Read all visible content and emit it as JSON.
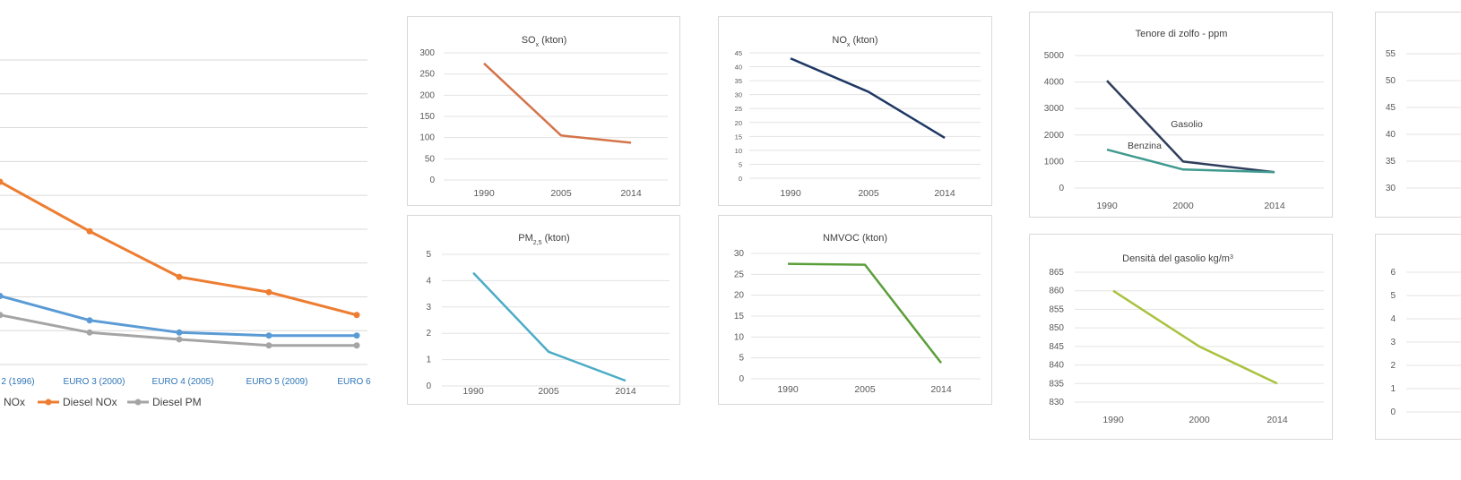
{
  "chart_data": [
    {
      "id": "euro",
      "type": "line",
      "title": "",
      "categories": [
        "2 (1996)",
        "EURO 3 (2000)",
        "EURO 4 (2005)",
        "EURO 5 (2009)",
        "EURO 6"
      ],
      "series": [
        {
          "name": "NOx",
          "color": "#5b9bd5",
          "values": [
            0.9,
            0.58,
            0.42,
            0.38,
            0.38
          ]
        },
        {
          "name": "Diesel NOx",
          "color": "#ed7d31",
          "values": [
            2.4,
            1.75,
            1.15,
            0.95,
            0.65
          ]
        },
        {
          "name": "Diesel PM",
          "color": "#a5a5a5",
          "values": [
            0.65,
            0.42,
            0.33,
            0.25,
            0.25
          ]
        }
      ],
      "ylim": [
        0,
        4.0
      ],
      "grid": true,
      "legend": "bottom"
    },
    {
      "id": "sox",
      "type": "line",
      "title": "SO",
      "title_sub": "x",
      "title_suffix": " (kton)",
      "categories": [
        "1990",
        "2005",
        "2014"
      ],
      "series": [
        {
          "color": "#d4744a",
          "values": [
            275,
            105,
            88
          ]
        }
      ],
      "yticks": [
        "300",
        "250",
        "200",
        "150",
        "100",
        "50",
        "0"
      ],
      "ylim": [
        0,
        300
      ],
      "grid": true
    },
    {
      "id": "nox",
      "type": "line",
      "title": "NO",
      "title_sub": "x",
      "title_suffix": " (kton)",
      "categories": [
        "1990",
        "2005",
        "2014"
      ],
      "series": [
        {
          "color": "#1f3864",
          "values": [
            43,
            31,
            14.5
          ]
        }
      ],
      "yticks": [
        "45",
        "40",
        "35",
        "30",
        "25",
        "20",
        "15",
        "10",
        "5",
        "0"
      ],
      "ylim": [
        0,
        45
      ],
      "grid": true
    },
    {
      "id": "sulfur",
      "type": "line",
      "title": "Tenore di zolfo - ppm",
      "categories": [
        "1990",
        "2000",
        "2014"
      ],
      "series": [
        {
          "name": "Gasolio",
          "color": "#2f3e5c",
          "values": [
            4050,
            1000,
            600
          ]
        },
        {
          "name": "Benzina",
          "color": "#3f9a8f",
          "values": [
            1450,
            700,
            600
          ]
        }
      ],
      "yticks": [
        "5000",
        "4000",
        "3000",
        "2000",
        "1000",
        "0"
      ],
      "ylim": [
        0,
        5000
      ],
      "grid": true
    },
    {
      "id": "pm25",
      "type": "line",
      "title": "PM",
      "title_sub": "2,5",
      "title_suffix": " (kton)",
      "categories": [
        "1990",
        "2005",
        "2014"
      ],
      "series": [
        {
          "color": "#4bacc6",
          "values": [
            4.3,
            1.3,
            0.2
          ]
        }
      ],
      "yticks": [
        "5",
        "4",
        "3",
        "2",
        "1",
        "0"
      ],
      "ylim": [
        0,
        5
      ],
      "grid": true
    },
    {
      "id": "nmvoc",
      "type": "line",
      "title": "NMVOC (kton)",
      "categories": [
        "1990",
        "2005",
        "2014"
      ],
      "series": [
        {
          "color": "#5a9e3a",
          "values": [
            27.5,
            27.3,
            3.8
          ]
        }
      ],
      "yticks": [
        "30",
        "25",
        "20",
        "15",
        "10",
        "5",
        "0"
      ],
      "ylim": [
        0,
        30
      ],
      "grid": true
    },
    {
      "id": "density",
      "type": "line",
      "title": "Densità del gasolio kg/m",
      "title_sup": "3",
      "categories": [
        "1990",
        "2000",
        "2014"
      ],
      "series": [
        {
          "color": "#a9c23f",
          "values": [
            860,
            845,
            835
          ]
        }
      ],
      "yticks": [
        "865",
        "860",
        "855",
        "850",
        "845",
        "840",
        "835",
        "830"
      ],
      "ylim": [
        830,
        865
      ],
      "grid": true
    },
    {
      "id": "cut1",
      "type": "line",
      "title": "",
      "yticks": [
        "55",
        "50",
        "45",
        "40",
        "35",
        "30"
      ],
      "series": []
    },
    {
      "id": "cut2",
      "type": "line",
      "title": "",
      "yticks": [
        "6",
        "5",
        "4",
        "3",
        "2",
        "1",
        "0"
      ],
      "series": []
    }
  ]
}
